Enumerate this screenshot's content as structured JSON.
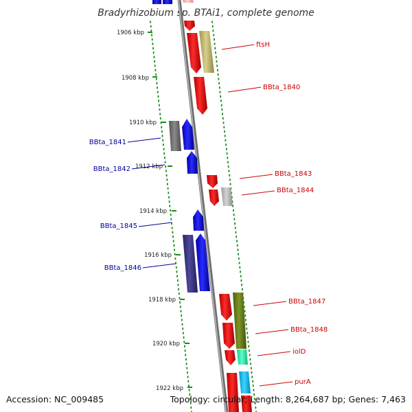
{
  "title": "Bradyrhizobium sp. BTAi1, complete genome",
  "footer": {
    "accession": "Accession: NC_009485",
    "summary": "Topology: circular; Length: 8,264,687 bp; Genes: 7,463"
  },
  "kbp_labels": [
    "1906 kbp",
    "1908 kbp",
    "1910 kbp",
    "1912 kbp",
    "1914 kbp",
    "1916 kbp",
    "1918 kbp",
    "1920 kbp",
    "1922 kbp"
  ],
  "genes": {
    "ftsH": "ftsH",
    "BBta_1840": "BBta_1840",
    "BBta_1841": "BBta_1841",
    "BBta_1842": "BBta_1842",
    "BBta_1843": "BBta_1843",
    "BBta_1844": "BBta_1844",
    "BBta_1845": "BBta_1845",
    "BBta_1846": "BBta_1846",
    "BBta_1847": "BBta_1847",
    "BBta_1848": "BBta_1848",
    "iolD": "iolD",
    "purA": "purA"
  },
  "colors": {
    "forward_strand_label": "#cc0000",
    "reverse_strand_label": "#000099",
    "forward_gene": "#ff0000",
    "reverse_gene": "#0000ff",
    "backbone": "#888888",
    "tick_dots": "#1a8a1a"
  }
}
